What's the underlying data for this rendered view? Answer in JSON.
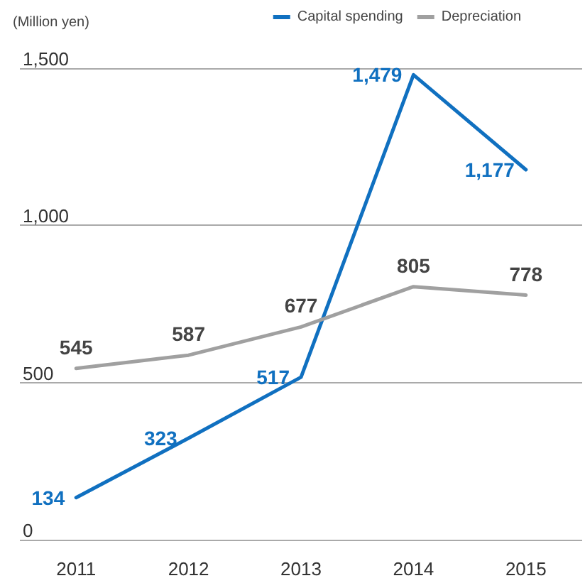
{
  "chart_data": {
    "type": "line",
    "ylabel": "(Million yen)",
    "categories": [
      "2011",
      "2012",
      "2013",
      "2014",
      "2015"
    ],
    "series": [
      {
        "name": "Capital spending",
        "color": "#1070c0",
        "values": [
          134,
          323,
          517,
          1479,
          1177
        ],
        "value_labels": [
          "134",
          "323",
          "517",
          "1,479",
          "1,177"
        ]
      },
      {
        "name": "Depreciation",
        "color": "#a0a0a0",
        "values": [
          545,
          587,
          677,
          805,
          778
        ],
        "value_labels": [
          "545",
          "587",
          "677",
          "805",
          "778"
        ]
      }
    ],
    "ylim": [
      0,
      1500
    ],
    "yticks": [
      {
        "value": 0,
        "label": "0"
      },
      {
        "value": 500,
        "label": "500"
      },
      {
        "value": 1000,
        "label": "1,000"
      },
      {
        "value": 1500,
        "label": "1,500"
      }
    ],
    "grid": "y",
    "legend": "top right",
    "marker": "none",
    "line_style": "solid"
  }
}
